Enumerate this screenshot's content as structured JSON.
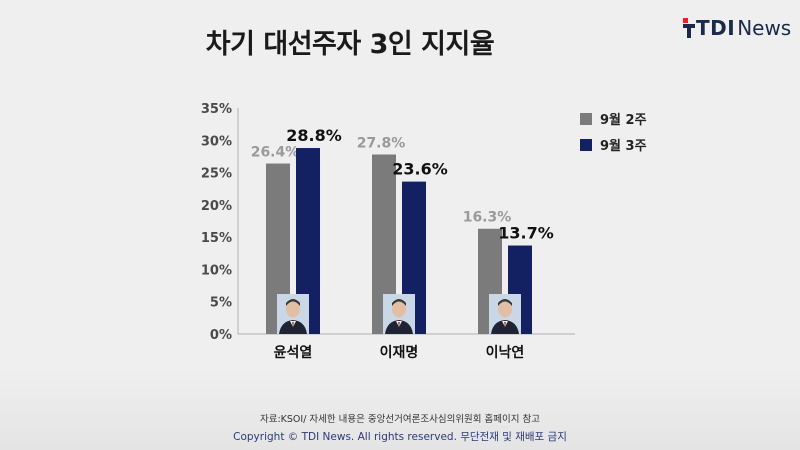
{
  "title": "차기 대선주자 3인 지지율",
  "logo": {
    "part_a": "TDI",
    "part_b": "News"
  },
  "footer": {
    "source": "자료:KSOI/ 자세한 내용은 중앙선거여론조사심의위원회 홈페이지 참고",
    "copyright": "Copyright © TDI News. All rights reserved. 무단전재 및 재배포 금지"
  },
  "colors": {
    "series_a": "#7b7b7b",
    "series_b": "#132061"
  },
  "chart_data": {
    "type": "bar",
    "categories": [
      "윤석열",
      "이재명",
      "이낙연"
    ],
    "series": [
      {
        "name": "9월 2주",
        "values": [
          26.4,
          27.8,
          16.3
        ],
        "labels": [
          "26.4%",
          "27.8%",
          "16.3%"
        ]
      },
      {
        "name": "9월 3주",
        "values": [
          28.8,
          23.6,
          13.7
        ],
        "labels": [
          "28.8%",
          "23.6%",
          "13.7%"
        ]
      }
    ],
    "ylim": [
      0,
      35
    ],
    "yticks": [
      0,
      5,
      10,
      15,
      20,
      25,
      30,
      35
    ],
    "ytick_labels": [
      "0%",
      "5%",
      "10%",
      "15%",
      "20%",
      "25%",
      "30%",
      "35%"
    ],
    "grid": false,
    "legend_position": "top-right"
  }
}
